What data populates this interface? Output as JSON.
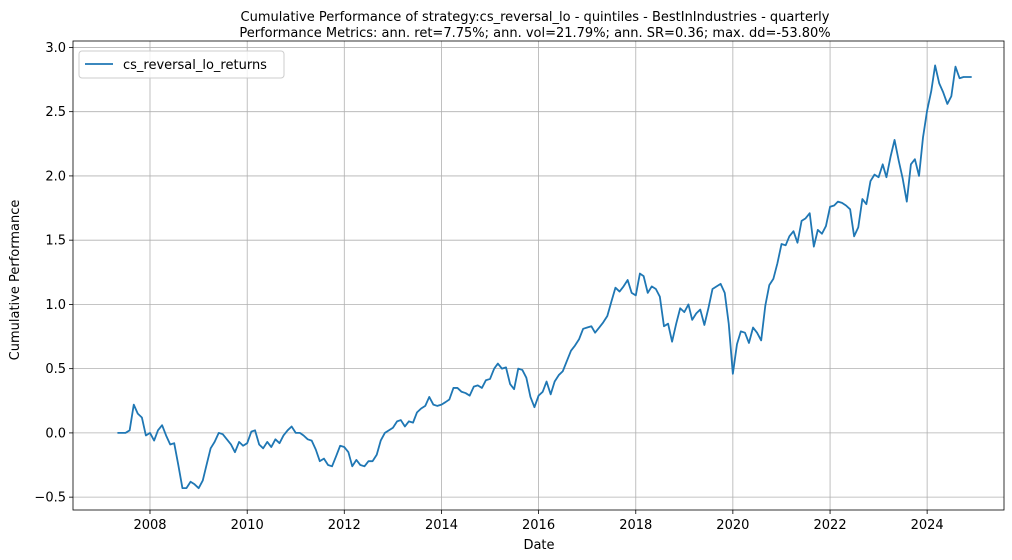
{
  "chart_data": {
    "type": "line",
    "title": "Cumulative Performance of strategy:cs_reversal_lo - quintiles - BestInIndustries - quarterly",
    "subtitle": "Performance Metrics: ann. ret=7.75%; ann. vol=21.79%; ann. SR=0.36; max. dd=-53.80%",
    "xlabel": "Date",
    "ylabel": "Cumulative Performance",
    "xlim": [
      "2006-06-01",
      "2025-08-01"
    ],
    "ylim": [
      -0.6,
      3.05
    ],
    "xticks": [
      "2008-01-01",
      "2010-01-01",
      "2012-01-01",
      "2014-01-01",
      "2016-01-01",
      "2018-01-01",
      "2020-01-01",
      "2022-01-01",
      "2024-01-01"
    ],
    "xtick_labels": [
      "2008",
      "2010",
      "2012",
      "2014",
      "2016",
      "2018",
      "2020",
      "2022",
      "2024"
    ],
    "yticks": [
      -0.5,
      0.0,
      0.5,
      1.0,
      1.5,
      2.0,
      2.5,
      3.0
    ],
    "ytick_labels": [
      "−0.5",
      "0.0",
      "0.5",
      "1.0",
      "1.5",
      "2.0",
      "2.5",
      "3.0"
    ],
    "grid": true,
    "legend_position": "top-left",
    "series": [
      {
        "name": "cs_reversal_lo_returns",
        "color": "#1f77b4",
        "points": [
          [
            "2007-05-01",
            0.0
          ],
          [
            "2007-06-01",
            0.0
          ],
          [
            "2007-07-01",
            0.0
          ],
          [
            "2007-08-01",
            0.02
          ],
          [
            "2007-09-01",
            0.22
          ],
          [
            "2007-10-01",
            0.15
          ],
          [
            "2007-11-01",
            0.12
          ],
          [
            "2007-12-01",
            -0.02
          ],
          [
            "2008-01-01",
            0.0
          ],
          [
            "2008-02-01",
            -0.06
          ],
          [
            "2008-03-01",
            0.02
          ],
          [
            "2008-04-01",
            0.06
          ],
          [
            "2008-05-01",
            -0.02
          ],
          [
            "2008-06-01",
            -0.09
          ],
          [
            "2008-07-01",
            -0.08
          ],
          [
            "2008-08-01",
            -0.25
          ],
          [
            "2008-09-01",
            -0.43
          ],
          [
            "2008-10-01",
            -0.43
          ],
          [
            "2008-11-01",
            -0.38
          ],
          [
            "2008-12-01",
            -0.4
          ],
          [
            "2009-01-01",
            -0.43
          ],
          [
            "2009-02-01",
            -0.37
          ],
          [
            "2009-03-01",
            -0.25
          ],
          [
            "2009-04-01",
            -0.12
          ],
          [
            "2009-05-01",
            -0.07
          ],
          [
            "2009-06-01",
            0.0
          ],
          [
            "2009-07-01",
            -0.01
          ],
          [
            "2009-08-01",
            -0.05
          ],
          [
            "2009-09-01",
            -0.09
          ],
          [
            "2009-10-01",
            -0.15
          ],
          [
            "2009-11-01",
            -0.07
          ],
          [
            "2009-12-01",
            -0.1
          ],
          [
            "2010-01-01",
            -0.08
          ],
          [
            "2010-02-01",
            0.01
          ],
          [
            "2010-03-01",
            0.02
          ],
          [
            "2010-04-01",
            -0.09
          ],
          [
            "2010-05-01",
            -0.12
          ],
          [
            "2010-06-01",
            -0.07
          ],
          [
            "2010-07-01",
            -0.11
          ],
          [
            "2010-08-01",
            -0.05
          ],
          [
            "2010-09-01",
            -0.08
          ],
          [
            "2010-10-01",
            -0.02
          ],
          [
            "2010-11-01",
            0.02
          ],
          [
            "2010-12-01",
            0.05
          ],
          [
            "2011-01-01",
            -0.0
          ],
          [
            "2011-02-01",
            0.0
          ],
          [
            "2011-03-01",
            -0.02
          ],
          [
            "2011-04-01",
            -0.05
          ],
          [
            "2011-05-01",
            -0.06
          ],
          [
            "2011-06-01",
            -0.13
          ],
          [
            "2011-07-01",
            -0.22
          ],
          [
            "2011-08-01",
            -0.2
          ],
          [
            "2011-09-01",
            -0.25
          ],
          [
            "2011-10-01",
            -0.26
          ],
          [
            "2011-11-01",
            -0.18
          ],
          [
            "2011-12-01",
            -0.1
          ],
          [
            "2012-01-01",
            -0.11
          ],
          [
            "2012-02-01",
            -0.15
          ],
          [
            "2012-03-01",
            -0.26
          ],
          [
            "2012-04-01",
            -0.21
          ],
          [
            "2012-05-01",
            -0.25
          ],
          [
            "2012-06-01",
            -0.26
          ],
          [
            "2012-07-01",
            -0.22
          ],
          [
            "2012-08-01",
            -0.22
          ],
          [
            "2012-09-01",
            -0.17
          ],
          [
            "2012-10-01",
            -0.06
          ],
          [
            "2012-11-01",
            0.0
          ],
          [
            "2012-12-01",
            0.02
          ],
          [
            "2013-01-01",
            0.04
          ],
          [
            "2013-02-01",
            0.09
          ],
          [
            "2013-03-01",
            0.1
          ],
          [
            "2013-04-01",
            0.05
          ],
          [
            "2013-05-01",
            0.09
          ],
          [
            "2013-06-01",
            0.08
          ],
          [
            "2013-07-01",
            0.16
          ],
          [
            "2013-08-01",
            0.19
          ],
          [
            "2013-09-01",
            0.21
          ],
          [
            "2013-10-01",
            0.28
          ],
          [
            "2013-11-01",
            0.22
          ],
          [
            "2013-12-01",
            0.21
          ],
          [
            "2014-01-01",
            0.22
          ],
          [
            "2014-02-01",
            0.24
          ],
          [
            "2014-03-01",
            0.26
          ],
          [
            "2014-04-01",
            0.35
          ],
          [
            "2014-05-01",
            0.35
          ],
          [
            "2014-06-01",
            0.32
          ],
          [
            "2014-07-01",
            0.31
          ],
          [
            "2014-08-01",
            0.29
          ],
          [
            "2014-09-01",
            0.36
          ],
          [
            "2014-10-01",
            0.37
          ],
          [
            "2014-11-01",
            0.35
          ],
          [
            "2014-12-01",
            0.41
          ],
          [
            "2015-01-01",
            0.42
          ],
          [
            "2015-02-01",
            0.5
          ],
          [
            "2015-03-01",
            0.54
          ],
          [
            "2015-04-01",
            0.5
          ],
          [
            "2015-05-01",
            0.51
          ],
          [
            "2015-06-01",
            0.38
          ],
          [
            "2015-07-01",
            0.34
          ],
          [
            "2015-08-01",
            0.5
          ],
          [
            "2015-09-01",
            0.49
          ],
          [
            "2015-10-01",
            0.43
          ],
          [
            "2015-11-01",
            0.28
          ],
          [
            "2015-12-01",
            0.2
          ],
          [
            "2016-01-01",
            0.29
          ],
          [
            "2016-02-01",
            0.32
          ],
          [
            "2016-03-01",
            0.4
          ],
          [
            "2016-04-01",
            0.3
          ],
          [
            "2016-05-01",
            0.4
          ],
          [
            "2016-06-01",
            0.45
          ],
          [
            "2016-07-01",
            0.48
          ],
          [
            "2016-08-01",
            0.56
          ],
          [
            "2016-09-01",
            0.64
          ],
          [
            "2016-10-01",
            0.68
          ],
          [
            "2016-11-01",
            0.73
          ],
          [
            "2016-12-01",
            0.81
          ],
          [
            "2017-01-01",
            0.82
          ],
          [
            "2017-02-01",
            0.83
          ],
          [
            "2017-03-01",
            0.78
          ],
          [
            "2017-04-01",
            0.82
          ],
          [
            "2017-05-01",
            0.86
          ],
          [
            "2017-06-01",
            0.91
          ],
          [
            "2017-07-01",
            1.02
          ],
          [
            "2017-08-01",
            1.13
          ],
          [
            "2017-09-01",
            1.1
          ],
          [
            "2017-10-01",
            1.14
          ],
          [
            "2017-11-01",
            1.19
          ],
          [
            "2017-12-01",
            1.09
          ],
          [
            "2018-01-01",
            1.07
          ],
          [
            "2018-02-01",
            1.24
          ],
          [
            "2018-03-01",
            1.22
          ],
          [
            "2018-04-01",
            1.09
          ],
          [
            "2018-05-01",
            1.14
          ],
          [
            "2018-06-01",
            1.12
          ],
          [
            "2018-07-01",
            1.06
          ],
          [
            "2018-08-01",
            0.83
          ],
          [
            "2018-09-01",
            0.85
          ],
          [
            "2018-10-01",
            0.71
          ],
          [
            "2018-11-01",
            0.85
          ],
          [
            "2018-12-01",
            0.97
          ],
          [
            "2019-01-01",
            0.94
          ],
          [
            "2019-02-01",
            1.0
          ],
          [
            "2019-03-01",
            0.88
          ],
          [
            "2019-04-01",
            0.93
          ],
          [
            "2019-05-01",
            0.96
          ],
          [
            "2019-06-01",
            0.84
          ],
          [
            "2019-07-01",
            0.97
          ],
          [
            "2019-08-01",
            1.12
          ],
          [
            "2019-09-01",
            1.14
          ],
          [
            "2019-10-01",
            1.16
          ],
          [
            "2019-11-01",
            1.09
          ],
          [
            "2019-12-01",
            0.85
          ],
          [
            "2020-01-01",
            0.46
          ],
          [
            "2020-02-01",
            0.69
          ],
          [
            "2020-03-01",
            0.79
          ],
          [
            "2020-04-01",
            0.78
          ],
          [
            "2020-05-01",
            0.7
          ],
          [
            "2020-06-01",
            0.82
          ],
          [
            "2020-07-01",
            0.78
          ],
          [
            "2020-08-01",
            0.72
          ],
          [
            "2020-09-01",
            0.99
          ],
          [
            "2020-10-01",
            1.15
          ],
          [
            "2020-11-01",
            1.2
          ],
          [
            "2020-12-01",
            1.32
          ],
          [
            "2021-01-01",
            1.47
          ],
          [
            "2021-02-01",
            1.46
          ],
          [
            "2021-03-01",
            1.53
          ],
          [
            "2021-04-01",
            1.57
          ],
          [
            "2021-05-01",
            1.48
          ],
          [
            "2021-06-01",
            1.65
          ],
          [
            "2021-07-01",
            1.67
          ],
          [
            "2021-08-01",
            1.71
          ],
          [
            "2021-09-01",
            1.45
          ],
          [
            "2021-10-01",
            1.58
          ],
          [
            "2021-11-01",
            1.55
          ],
          [
            "2021-12-01",
            1.61
          ],
          [
            "2022-01-01",
            1.76
          ],
          [
            "2022-02-01",
            1.77
          ],
          [
            "2022-03-01",
            1.8
          ],
          [
            "2022-04-01",
            1.79
          ],
          [
            "2022-05-01",
            1.77
          ],
          [
            "2022-06-01",
            1.74
          ],
          [
            "2022-07-01",
            1.53
          ],
          [
            "2022-08-01",
            1.6
          ],
          [
            "2022-09-01",
            1.82
          ],
          [
            "2022-10-01",
            1.78
          ],
          [
            "2022-11-01",
            1.96
          ],
          [
            "2022-12-01",
            2.01
          ],
          [
            "2023-01-01",
            1.99
          ],
          [
            "2023-02-01",
            2.09
          ],
          [
            "2023-03-01",
            1.99
          ],
          [
            "2023-04-01",
            2.15
          ],
          [
            "2023-05-01",
            2.28
          ],
          [
            "2023-06-01",
            2.12
          ],
          [
            "2023-07-01",
            1.98
          ],
          [
            "2023-08-01",
            1.8
          ],
          [
            "2023-09-01",
            2.09
          ],
          [
            "2023-10-01",
            2.13
          ],
          [
            "2023-11-01",
            2.0
          ],
          [
            "2023-12-01",
            2.3
          ],
          [
            "2024-01-01",
            2.51
          ],
          [
            "2024-02-01",
            2.66
          ],
          [
            "2024-03-01",
            2.86
          ],
          [
            "2024-04-01",
            2.72
          ],
          [
            "2024-05-01",
            2.65
          ],
          [
            "2024-06-01",
            2.56
          ],
          [
            "2024-07-01",
            2.62
          ],
          [
            "2024-08-01",
            2.85
          ],
          [
            "2024-09-01",
            2.76
          ],
          [
            "2024-10-01",
            2.77
          ],
          [
            "2024-11-01",
            2.77
          ],
          [
            "2024-12-01",
            2.77
          ]
        ]
      }
    ]
  }
}
